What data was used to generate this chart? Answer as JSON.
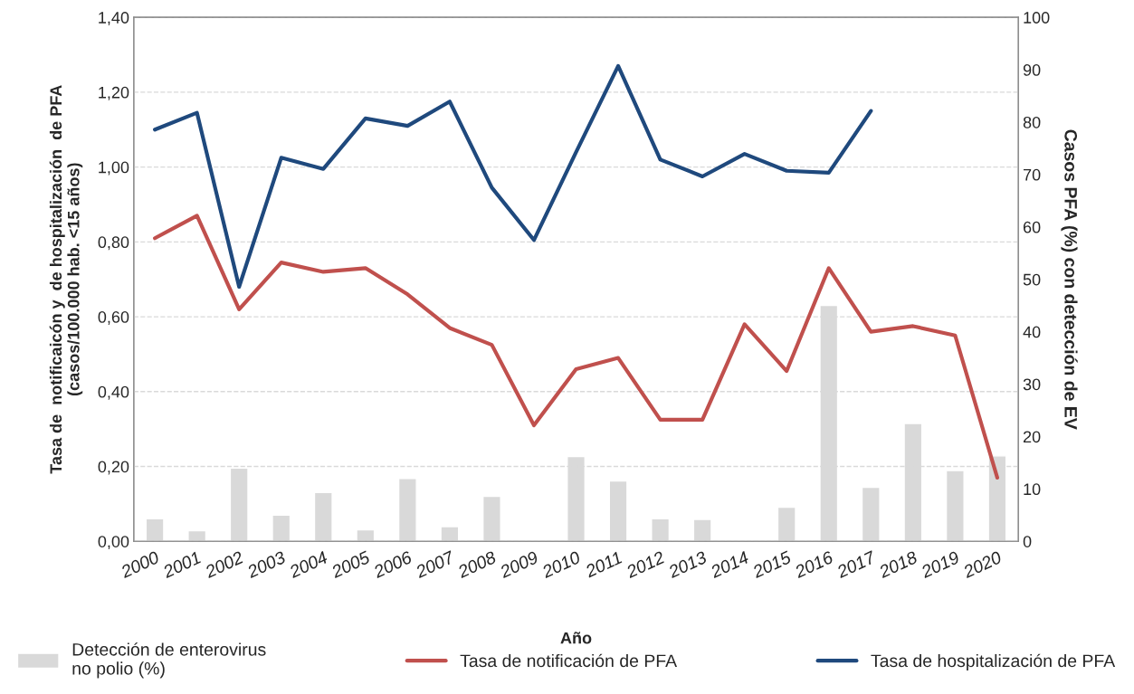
{
  "chart_data": {
    "type": "line",
    "xlabel": "Año",
    "ylabel": "Tasa de  notificaicón y  de hospitalización  de PFA\n(casos/100.000 hab. <15 años)",
    "y2label": "Casos PFA (%) con detección de EV",
    "categories": [
      "2000",
      "2001",
      "2002",
      "2003",
      "2004",
      "2005",
      "2006",
      "2007",
      "2008",
      "2009",
      "2010",
      "2011",
      "2012",
      "2013",
      "2014",
      "2015",
      "2016",
      "2017",
      "2018",
      "2019",
      "2020"
    ],
    "series": [
      {
        "name": "Detección de enterovirus\nno polio (%)",
        "type": "bar",
        "axis": "y2",
        "color": "#d9d9d9",
        "values": [
          4.3,
          2,
          14,
          5,
          9.3,
          2.2,
          12,
          2.8,
          8.6,
          null,
          16.2,
          11.5,
          4.3,
          4.2,
          null,
          6.5,
          45,
          10.3,
          22.5,
          13.5,
          16.3
        ]
      },
      {
        "name": "Tasa de notificación de PFA",
        "color": "#c0504d",
        "values": [
          0.81,
          0.87,
          0.62,
          0.745,
          0.72,
          0.73,
          0.66,
          0.57,
          0.525,
          0.31,
          0.46,
          0.49,
          0.325,
          0.325,
          0.58,
          0.455,
          0.73,
          0.56,
          0.575,
          0.55,
          0.17
        ]
      },
      {
        "name": "Tasa de hospitalización de PFA",
        "color": "#1f497d",
        "values": [
          1.1,
          1.145,
          0.68,
          1.025,
          0.995,
          1.13,
          1.11,
          1.175,
          0.945,
          0.805,
          1.04,
          1.27,
          1.02,
          0.975,
          1.035,
          0.99,
          0.985,
          1.15,
          null,
          null,
          null
        ]
      }
    ],
    "ylim": [
      0,
      1.4
    ],
    "yticks": [
      {
        "value": 0,
        "label": "0,00"
      },
      {
        "value": 0.2,
        "label": "0,20"
      },
      {
        "value": 0.4,
        "label": "0,40"
      },
      {
        "value": 0.6,
        "label": "0,60"
      },
      {
        "value": 0.8,
        "label": "0,80"
      },
      {
        "value": 1.0,
        "label": "1,00"
      },
      {
        "value": 1.2,
        "label": "1,20"
      },
      {
        "value": 1.4,
        "label": "1,40"
      }
    ],
    "y2lim": [
      0,
      100
    ],
    "y2ticks": [
      0,
      10,
      20,
      30,
      40,
      50,
      60,
      70,
      80,
      90,
      100
    ],
    "grid": "y",
    "legend": "bottom"
  }
}
